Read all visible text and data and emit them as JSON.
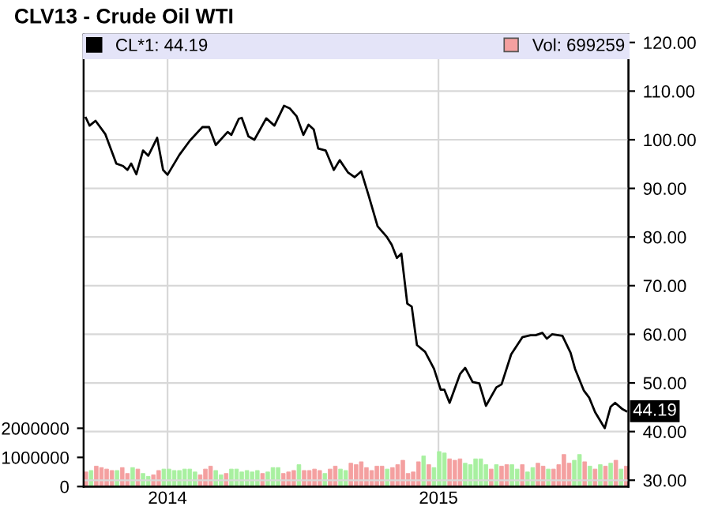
{
  "chart_data": {
    "type": "line",
    "title": "CLV13 - Crude Oil WTI",
    "xlim": [
      "2013-09-10",
      "2015-09-14"
    ],
    "xticks": [
      {
        "value": "2014-01-01",
        "label": "2014"
      },
      {
        "value": "2015-01-01",
        "label": "2015"
      }
    ],
    "ylim": [
      0,
      15500000
    ],
    "yticks": [
      0,
      1000000,
      2000000
    ],
    "y2lim": [
      28.7,
      121.6
    ],
    "y2ticks": [
      {
        "value": 30,
        "label": "30.00"
      },
      {
        "value": 40,
        "label": "40.00"
      },
      {
        "value": 50,
        "label": "50.00"
      },
      {
        "value": 60,
        "label": "60.00"
      },
      {
        "value": 70,
        "label": "70.00"
      },
      {
        "value": 80,
        "label": "80.00"
      },
      {
        "value": 90,
        "label": "90.00"
      },
      {
        "value": 100,
        "label": "100.00"
      },
      {
        "value": 110,
        "label": "110.00"
      },
      {
        "value": 120,
        "label": "120.00"
      }
    ],
    "grid": true,
    "legend": "top",
    "annotations": [
      "44.19"
    ],
    "series": [
      {
        "name": "CL*1: 44.19",
        "axis": "y2",
        "color": "#000000",
        "x": [
          "2013-09-13",
          "2013-09-18",
          "2013-09-26",
          "2013-10-09",
          "2013-10-24",
          "2013-11-02",
          "2013-11-08",
          "2013-11-13",
          "2013-11-20",
          "2013-11-29",
          "2013-12-06",
          "2013-12-18",
          "2013-12-26",
          "2014-01-01",
          "2014-01-17",
          "2014-01-31",
          "2014-02-17",
          "2014-02-26",
          "2014-03-07",
          "2014-03-23",
          "2014-03-28",
          "2014-04-07",
          "2014-04-11",
          "2014-04-20",
          "2014-04-28",
          "2014-05-14",
          "2014-05-25",
          "2014-06-07",
          "2014-06-15",
          "2014-06-24",
          "2014-07-03",
          "2014-07-10",
          "2014-07-17",
          "2014-07-23",
          "2014-08-02",
          "2014-08-13",
          "2014-08-21",
          "2014-09-01",
          "2014-09-10",
          "2014-09-19",
          "2014-09-29",
          "2014-10-11",
          "2014-10-23",
          "2014-10-30",
          "2014-11-06",
          "2014-11-12",
          "2014-11-20",
          "2014-11-26",
          "2014-12-03",
          "2014-12-14",
          "2014-12-26",
          "2015-01-04",
          "2015-01-09",
          "2015-01-16",
          "2015-01-30",
          "2015-02-06",
          "2015-02-16",
          "2015-02-25",
          "2015-03-06",
          "2015-03-20",
          "2015-03-27",
          "2015-04-09",
          "2015-04-24",
          "2015-05-05",
          "2015-05-12",
          "2015-05-21",
          "2015-05-27",
          "2015-06-03",
          "2015-06-17",
          "2015-06-28",
          "2015-07-04",
          "2015-07-16",
          "2015-07-23",
          "2015-07-31",
          "2015-08-13",
          "2015-08-21",
          "2015-08-27",
          "2015-09-06",
          "2015-09-11"
        ],
        "values": [
          104.5,
          102.9,
          103.9,
          101.2,
          95.1,
          94.6,
          93.8,
          95.1,
          92.9,
          97.8,
          96.7,
          100.4,
          93.8,
          92.8,
          96.9,
          99.8,
          102.6,
          102.6,
          98.9,
          101.6,
          101.0,
          104.3,
          104.5,
          100.7,
          100.0,
          104.4,
          102.9,
          107.0,
          106.4,
          104.8,
          101.0,
          103.1,
          102.1,
          98.2,
          97.8,
          93.8,
          95.8,
          93.3,
          92.3,
          93.5,
          88.5,
          82.2,
          80.1,
          78.4,
          75.7,
          76.6,
          66.3,
          65.7,
          57.8,
          56.4,
          52.9,
          48.6,
          48.6,
          45.9,
          51.8,
          53.1,
          50.2,
          49.9,
          45.3,
          49.1,
          49.7,
          55.9,
          59.4,
          59.8,
          59.8,
          60.3,
          59.1,
          60.0,
          59.7,
          56.2,
          52.9,
          48.4,
          47.0,
          44.0,
          40.7,
          45.1,
          45.9,
          44.6,
          44.19
        ]
      },
      {
        "name": "Vol: 699259",
        "type": "bar",
        "color": "#f4a0a0",
        "x": [
          "2013-09-13",
          "2013-09-20",
          "2013-09-27",
          "2013-10-04",
          "2013-10-11",
          "2013-10-18",
          "2013-10-25",
          "2013-11-01",
          "2013-11-08",
          "2013-11-15",
          "2013-11-22",
          "2013-11-29",
          "2013-12-06",
          "2013-12-13",
          "2013-12-20",
          "2013-12-27",
          "2014-01-03",
          "2014-01-10",
          "2014-01-17",
          "2014-01-24",
          "2014-01-31",
          "2014-02-07",
          "2014-02-14",
          "2014-02-21",
          "2014-02-28",
          "2014-03-07",
          "2014-03-14",
          "2014-03-21",
          "2014-03-28",
          "2014-04-04",
          "2014-04-11",
          "2014-04-18",
          "2014-04-25",
          "2014-05-02",
          "2014-05-09",
          "2014-05-16",
          "2014-05-23",
          "2014-05-30",
          "2014-06-06",
          "2014-06-13",
          "2014-06-20",
          "2014-06-27",
          "2014-07-04",
          "2014-07-11",
          "2014-07-18",
          "2014-07-25",
          "2014-08-01",
          "2014-08-08",
          "2014-08-15",
          "2014-08-22",
          "2014-08-29",
          "2014-09-05",
          "2014-09-12",
          "2014-09-19",
          "2014-09-26",
          "2014-10-03",
          "2014-10-10",
          "2014-10-17",
          "2014-10-24",
          "2014-10-31",
          "2014-11-07",
          "2014-11-14",
          "2014-11-21",
          "2014-11-28",
          "2014-12-05",
          "2014-12-12",
          "2014-12-19",
          "2014-12-26",
          "2015-01-02",
          "2015-01-09",
          "2015-01-16",
          "2015-01-23",
          "2015-01-30",
          "2015-02-06",
          "2015-02-13",
          "2015-02-20",
          "2015-02-27",
          "2015-03-06",
          "2015-03-13",
          "2015-03-20",
          "2015-03-27",
          "2015-04-03",
          "2015-04-10",
          "2015-04-17",
          "2015-04-24",
          "2015-05-01",
          "2015-05-08",
          "2015-05-15",
          "2015-05-22",
          "2015-05-29",
          "2015-06-05",
          "2015-06-12",
          "2015-06-19",
          "2015-06-26",
          "2015-07-03",
          "2015-07-10",
          "2015-07-17",
          "2015-07-24",
          "2015-07-31",
          "2015-08-07",
          "2015-08-14",
          "2015-08-21",
          "2015-08-28",
          "2015-09-04",
          "2015-09-11"
        ],
        "values": [
          500000,
          550000,
          700000,
          650000,
          600000,
          550000,
          550000,
          650000,
          450000,
          650000,
          600000,
          450000,
          350000,
          400000,
          550000,
          600000,
          600000,
          550000,
          550000,
          600000,
          600000,
          500000,
          400000,
          600000,
          700000,
          550000,
          400000,
          450000,
          600000,
          600000,
          500000,
          550000,
          500000,
          550000,
          450000,
          500000,
          650000,
          650000,
          450000,
          500000,
          550000,
          750000,
          550000,
          550000,
          600000,
          550000,
          450000,
          600000,
          700000,
          600000,
          550000,
          800000,
          750000,
          850000,
          650000,
          550000,
          700000,
          700000,
          600000,
          650000,
          750000,
          900000,
          450000,
          500000,
          850000,
          1050000,
          750000,
          650000,
          1200000,
          1150000,
          950000,
          900000,
          950000,
          800000,
          750000,
          950000,
          950000,
          750000,
          600000,
          750000,
          700000,
          750000,
          750000,
          600000,
          750000,
          500000,
          650000,
          800000,
          700000,
          600000,
          600000,
          750000,
          1100000,
          800000,
          900000,
          1100000,
          850000,
          700000,
          600000,
          750000,
          700000,
          800000,
          900000,
          600000,
          700000
        ],
        "colors": [
          "#f4a0a0",
          "#a8f0a0",
          "#f4a0a0",
          "#f4a0a0",
          "#f4a0a0",
          "#f4a0a0",
          "#a8f0a0",
          "#f4a0a0",
          "#f4a0a0",
          "#a8f0a0",
          "#f4a0a0",
          "#a8f0a0",
          "#a8f0a0",
          "#f4a0a0",
          "#f4a0a0",
          "#a8f0a0",
          "#a8f0a0",
          "#a8f0a0",
          "#a8f0a0",
          "#a8f0a0",
          "#a8f0a0",
          "#a8f0a0",
          "#f4a0a0",
          "#f4a0a0",
          "#f4a0a0",
          "#a8f0a0",
          "#a8f0a0",
          "#f4a0a0",
          "#a8f0a0",
          "#a8f0a0",
          "#a8f0a0",
          "#a8f0a0",
          "#a8f0a0",
          "#a8f0a0",
          "#f4a0a0",
          "#a8f0a0",
          "#a8f0a0",
          "#a8f0a0",
          "#f4a0a0",
          "#f4a0a0",
          "#f4a0a0",
          "#a8f0a0",
          "#f4a0a0",
          "#f4a0a0",
          "#f4a0a0",
          "#f4a0a0",
          "#a8f0a0",
          "#f4a0a0",
          "#f4a0a0",
          "#a8f0a0",
          "#a8f0a0",
          "#f4a0a0",
          "#f4a0a0",
          "#f4a0a0",
          "#f4a0a0",
          "#f4a0a0",
          "#f4a0a0",
          "#f4a0a0",
          "#a8f0a0",
          "#f4a0a0",
          "#f4a0a0",
          "#f4a0a0",
          "#f4a0a0",
          "#f4a0a0",
          "#f4a0a0",
          "#a8f0a0",
          "#f4a0a0",
          "#a8f0a0",
          "#a8f0a0",
          "#a8f0a0",
          "#f4a0a0",
          "#f4a0a0",
          "#f4a0a0",
          "#a8f0a0",
          "#a8f0a0",
          "#a8f0a0",
          "#a8f0a0",
          "#a8f0a0",
          "#f4a0a0",
          "#a8f0a0",
          "#f4a0a0",
          "#f4a0a0",
          "#a8f0a0",
          "#a8f0a0",
          "#f4a0a0",
          "#a8f0a0",
          "#a8f0a0",
          "#f4a0a0",
          "#f4a0a0",
          "#a8f0a0",
          "#f4a0a0",
          "#f4a0a0",
          "#f4a0a0",
          "#f4a0a0",
          "#a8f0a0",
          "#a8f0a0",
          "#f4a0a0",
          "#a8f0a0",
          "#f4a0a0",
          "#a8f0a0",
          "#f4a0a0",
          "#a8f0a0",
          "#f4a0a0",
          "#a8f0a0",
          "#f4a0a0"
        ]
      }
    ]
  }
}
